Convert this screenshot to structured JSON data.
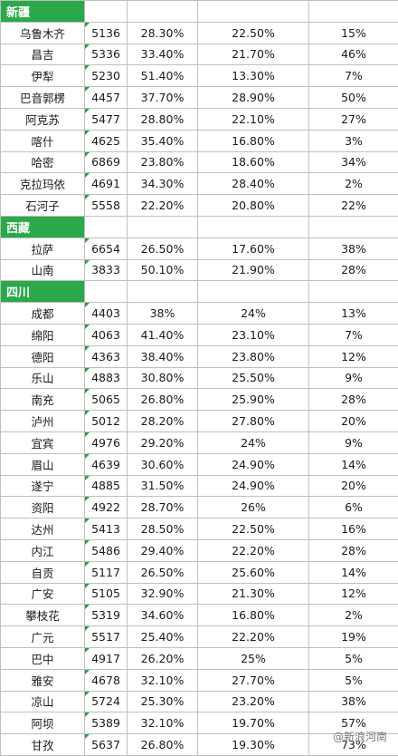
{
  "sections": [
    {
      "name": "新疆",
      "rows": [
        {
          "city": "乌鲁木齐",
          "v1": "5136",
          "v2": "28.30%",
          "v3": "22.50%",
          "v4": "15%"
        },
        {
          "city": "昌吉",
          "v1": "5336",
          "v2": "33.40%",
          "v3": "21.70%",
          "v4": "46%"
        },
        {
          "city": "伊犁",
          "v1": "5230",
          "v2": "51.40%",
          "v3": "13.30%",
          "v4": "7%"
        },
        {
          "city": "巴音郭楞",
          "v1": "4457",
          "v2": "37.70%",
          "v3": "28.90%",
          "v4": "50%"
        },
        {
          "city": "阿克苏",
          "v1": "5477",
          "v2": "28.80%",
          "v3": "22.10%",
          "v4": "27%"
        },
        {
          "city": "喀什",
          "v1": "4625",
          "v2": "35.40%",
          "v3": "16.80%",
          "v4": "3%"
        },
        {
          "city": "哈密",
          "v1": "6869",
          "v2": "23.80%",
          "v3": "18.60%",
          "v4": "34%"
        },
        {
          "city": "克拉玛依",
          "v1": "4691",
          "v2": "34.30%",
          "v3": "28.40%",
          "v4": "2%"
        },
        {
          "city": "石河子",
          "v1": "5558",
          "v2": "22.20%",
          "v3": "20.80%",
          "v4": "22%"
        }
      ]
    },
    {
      "name": "西藏",
      "rows": [
        {
          "city": "拉萨",
          "v1": "6654",
          "v2": "26.50%",
          "v3": "17.60%",
          "v4": "38%"
        },
        {
          "city": "山南",
          "v1": "3833",
          "v2": "50.10%",
          "v3": "21.90%",
          "v4": "28%"
        }
      ]
    },
    {
      "name": "四川",
      "rows": [
        {
          "city": "成都",
          "v1": "4403",
          "v2": "38%",
          "v3": "24%",
          "v4": "13%"
        },
        {
          "city": "绵阳",
          "v1": "4063",
          "v2": "41.40%",
          "v3": "23.10%",
          "v4": "7%"
        },
        {
          "city": "德阳",
          "v1": "4363",
          "v2": "38.40%",
          "v3": "23.80%",
          "v4": "12%"
        },
        {
          "city": "乐山",
          "v1": "4883",
          "v2": "30.80%",
          "v3": "25.50%",
          "v4": "9%"
        },
        {
          "city": "南充",
          "v1": "5065",
          "v2": "26.80%",
          "v3": "25.90%",
          "v4": "28%"
        },
        {
          "city": "泸州",
          "v1": "5012",
          "v2": "28.20%",
          "v3": "27.80%",
          "v4": "20%"
        },
        {
          "city": "宜宾",
          "v1": "4976",
          "v2": "29.20%",
          "v3": "24%",
          "v4": "9%"
        },
        {
          "city": "眉山",
          "v1": "4639",
          "v2": "30.60%",
          "v3": "24.90%",
          "v4": "14%"
        },
        {
          "city": "遂宁",
          "v1": "4885",
          "v2": "31.50%",
          "v3": "24.90%",
          "v4": "20%"
        },
        {
          "city": "资阳",
          "v1": "4922",
          "v2": "28.70%",
          "v3": "26%",
          "v4": "6%"
        },
        {
          "city": "达州",
          "v1": "5413",
          "v2": "28.50%",
          "v3": "22.50%",
          "v4": "16%"
        },
        {
          "city": "内江",
          "v1": "5486",
          "v2": "29.40%",
          "v3": "22.20%",
          "v4": "28%"
        },
        {
          "city": "自贡",
          "v1": "5117",
          "v2": "26.50%",
          "v3": "25.60%",
          "v4": "14%"
        },
        {
          "city": "广安",
          "v1": "5105",
          "v2": "32.90%",
          "v3": "21.30%",
          "v4": "12%"
        },
        {
          "city": "攀枝花",
          "v1": "5319",
          "v2": "34.60%",
          "v3": "16.80%",
          "v4": "2%"
        },
        {
          "city": "广元",
          "v1": "5517",
          "v2": "25.40%",
          "v3": "22.20%",
          "v4": "19%"
        },
        {
          "city": "巴中",
          "v1": "4917",
          "v2": "26.20%",
          "v3": "25%",
          "v4": "5%"
        },
        {
          "city": "雅安",
          "v1": "4678",
          "v2": "32.10%",
          "v3": "27.70%",
          "v4": "5%"
        },
        {
          "city": "凉山",
          "v1": "5724",
          "v2": "25.30%",
          "v3": "23.20%",
          "v4": "38%"
        },
        {
          "city": "阿坝",
          "v1": "5389",
          "v2": "32.10%",
          "v3": "19.70%",
          "v4": "57%"
        },
        {
          "city": "甘孜",
          "v1": "5637",
          "v2": "26.80%",
          "v3": "19.30%",
          "v4": "73%"
        }
      ]
    }
  ],
  "watermark": "@新浪河南",
  "colors": {
    "section_header": "#2aa84a",
    "corner_mark": "#2e9d3e",
    "grid": "#bfbfbf"
  }
}
